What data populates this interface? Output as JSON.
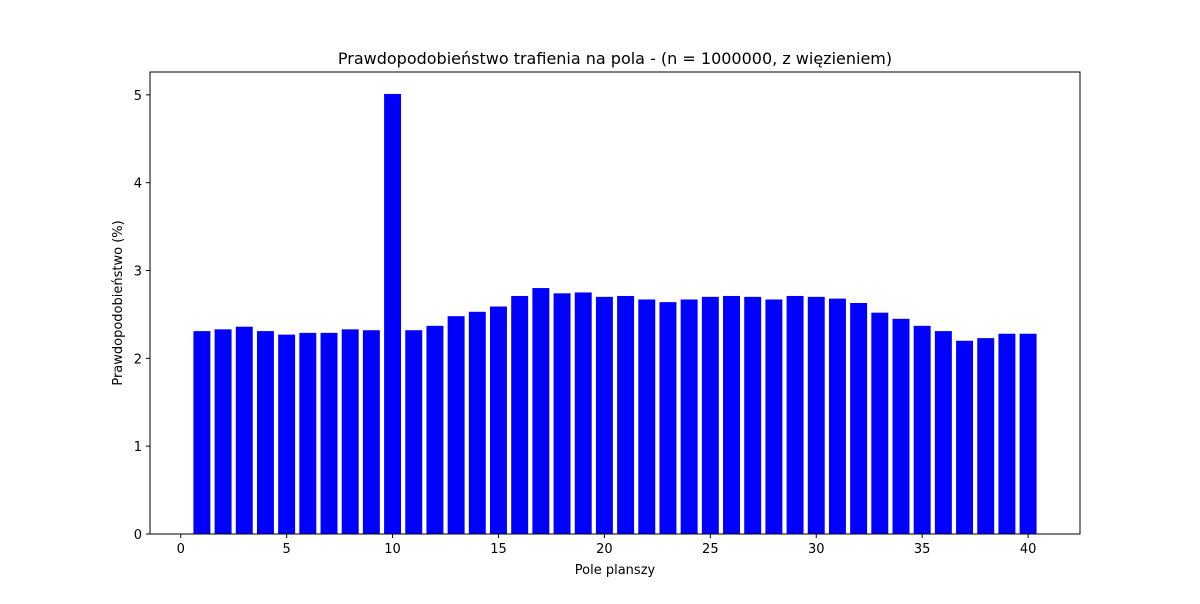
{
  "chart_data": {
    "type": "bar",
    "title": "Prawdopodobieństwo trafienia na pola - (n = 1000000, z więzieniem)",
    "xlabel": "Pole planszy",
    "ylabel": "Prawdopodobieństwo (%)",
    "x": [
      1,
      2,
      3,
      4,
      5,
      6,
      7,
      8,
      9,
      10,
      11,
      12,
      13,
      14,
      15,
      16,
      17,
      18,
      19,
      20,
      21,
      22,
      23,
      24,
      25,
      26,
      27,
      28,
      29,
      30,
      31,
      32,
      33,
      34,
      35,
      36,
      37,
      38,
      39,
      40
    ],
    "values": [
      2.31,
      2.33,
      2.36,
      2.31,
      2.27,
      2.29,
      2.29,
      2.33,
      2.32,
      5.01,
      2.32,
      2.37,
      2.48,
      2.53,
      2.59,
      2.71,
      2.8,
      2.74,
      2.75,
      2.7,
      2.71,
      2.67,
      2.64,
      2.67,
      2.7,
      2.71,
      2.7,
      2.67,
      2.71,
      2.7,
      2.68,
      2.63,
      2.52,
      2.45,
      2.37,
      2.31,
      2.2,
      2.23,
      2.28,
      2.28
    ],
    "xlim": [
      -1.45,
      42.45
    ],
    "ylim": [
      0,
      5.26
    ],
    "xticks": [
      0,
      5,
      10,
      15,
      20,
      25,
      30,
      35,
      40
    ],
    "yticks": [
      0,
      1,
      2,
      3,
      4,
      5
    ],
    "bar_color": "#0000ff",
    "grid": false,
    "legend": "none"
  }
}
